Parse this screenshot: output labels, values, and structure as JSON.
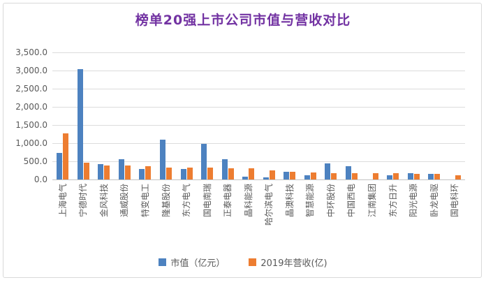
{
  "title": "榜单20强上市公司市值与营收对比",
  "colors": {
    "market_cap": "#4d82c0",
    "revenue": "#ed7d31",
    "title": "#7232a2",
    "axis_text": "#595959",
    "gridline": "#dcdcdc",
    "frame_border": "#d9d9d9"
  },
  "y_axis": {
    "tick_labels": [
      "3,500.0",
      "3,000.0",
      "2,500.0",
      "2,000.0",
      "1,500.0",
      "1,000.0",
      "500.0",
      "0.0"
    ],
    "min": 0,
    "max": 3500,
    "step": 500
  },
  "legend": {
    "items": [
      {
        "label": "市值（亿元）",
        "color_key": "market_cap"
      },
      {
        "label": "2019年营收(亿)",
        "color_key": "revenue"
      }
    ]
  },
  "chart_data": {
    "type": "bar",
    "title": "榜单20强上市公司市值与营收对比",
    "categories": [
      "上海电气",
      "宁德时代",
      "金风科技",
      "通威股份",
      "特变电工",
      "隆基股份",
      "东方电气",
      "国电南瑞",
      "正泰电器",
      "晶科能源",
      "哈尔滨电气",
      "晶澳科技",
      "智慧能源",
      "中环股份",
      "中国西电",
      "江南集团",
      "东方日升",
      "阳光电源",
      "卧龙电驱",
      "国电科环"
    ],
    "series": [
      {
        "name": "市值（亿元）",
        "color": "#4d82c0",
        "values": [
          730,
          3040,
          420,
          560,
          290,
          1100,
          295,
          985,
          550,
          80,
          50,
          215,
          110,
          450,
          370,
          0,
          110,
          175,
          155,
          0
        ]
      },
      {
        "name": "2019年营收(亿)",
        "color": "#ed7d31",
        "values": [
          1275,
          460,
          385,
          375,
          370,
          330,
          330,
          325,
          305,
          300,
          245,
          215,
          195,
          175,
          170,
          175,
          170,
          155,
          155,
          115
        ]
      }
    ],
    "xlabel": "",
    "ylabel": "",
    "ylim": [
      0,
      3500
    ],
    "grid": true,
    "legend_position": "bottom"
  }
}
